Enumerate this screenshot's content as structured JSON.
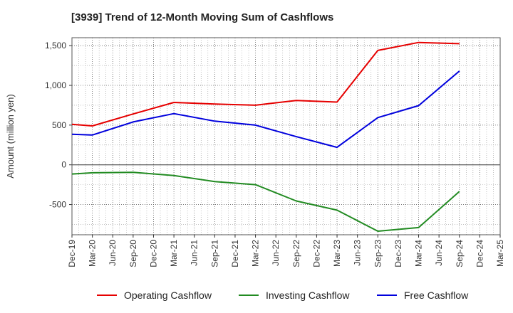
{
  "title": "[3939]  Trend of 12-Month Moving Sum of Cashflows",
  "chart_data": {
    "type": "line",
    "title": "[3939]  Trend of 12-Month Moving Sum of Cashflows",
    "ylabel": "Amount (million yen)",
    "xlabel": "",
    "categories": [
      "Dec-19",
      "Mar-20",
      "Jun-20",
      "Sep-20",
      "Dec-20",
      "Mar-21",
      "Jun-21",
      "Sep-21",
      "Dec-21",
      "Mar-22",
      "Jun-22",
      "Sep-22",
      "Dec-22",
      "Mar-23",
      "Jun-23",
      "Sep-23",
      "Dec-23",
      "Mar-24",
      "Jun-24",
      "Sep-24",
      "Dec-24",
      "Mar-25"
    ],
    "yticks": [
      -500,
      0,
      500,
      1000,
      1500
    ],
    "ytick_labels": [
      "-500",
      "0",
      "500",
      "1,000",
      "1,500"
    ],
    "ylim": [
      -880,
      1600
    ],
    "grid": true,
    "legend_position": "bottom",
    "series": [
      {
        "name": "Operating Cashflow",
        "color": "#e60000",
        "values": [
          510,
          490,
          null,
          640,
          null,
          785,
          null,
          765,
          null,
          750,
          null,
          810,
          null,
          790,
          null,
          1440,
          null,
          1540,
          null,
          1525,
          null,
          null
        ]
      },
      {
        "name": "Investing Cashflow",
        "color": "#228b22",
        "values": [
          -115,
          -100,
          null,
          -95,
          null,
          -135,
          null,
          -210,
          null,
          -250,
          null,
          -455,
          null,
          -570,
          null,
          -835,
          null,
          -790,
          null,
          -335,
          null,
          null
        ]
      },
      {
        "name": "Free Cashflow",
        "color": "#0000dd",
        "values": [
          385,
          375,
          null,
          540,
          null,
          645,
          null,
          550,
          null,
          500,
          null,
          355,
          null,
          220,
          null,
          595,
          null,
          745,
          null,
          1180,
          null,
          null
        ]
      }
    ]
  }
}
